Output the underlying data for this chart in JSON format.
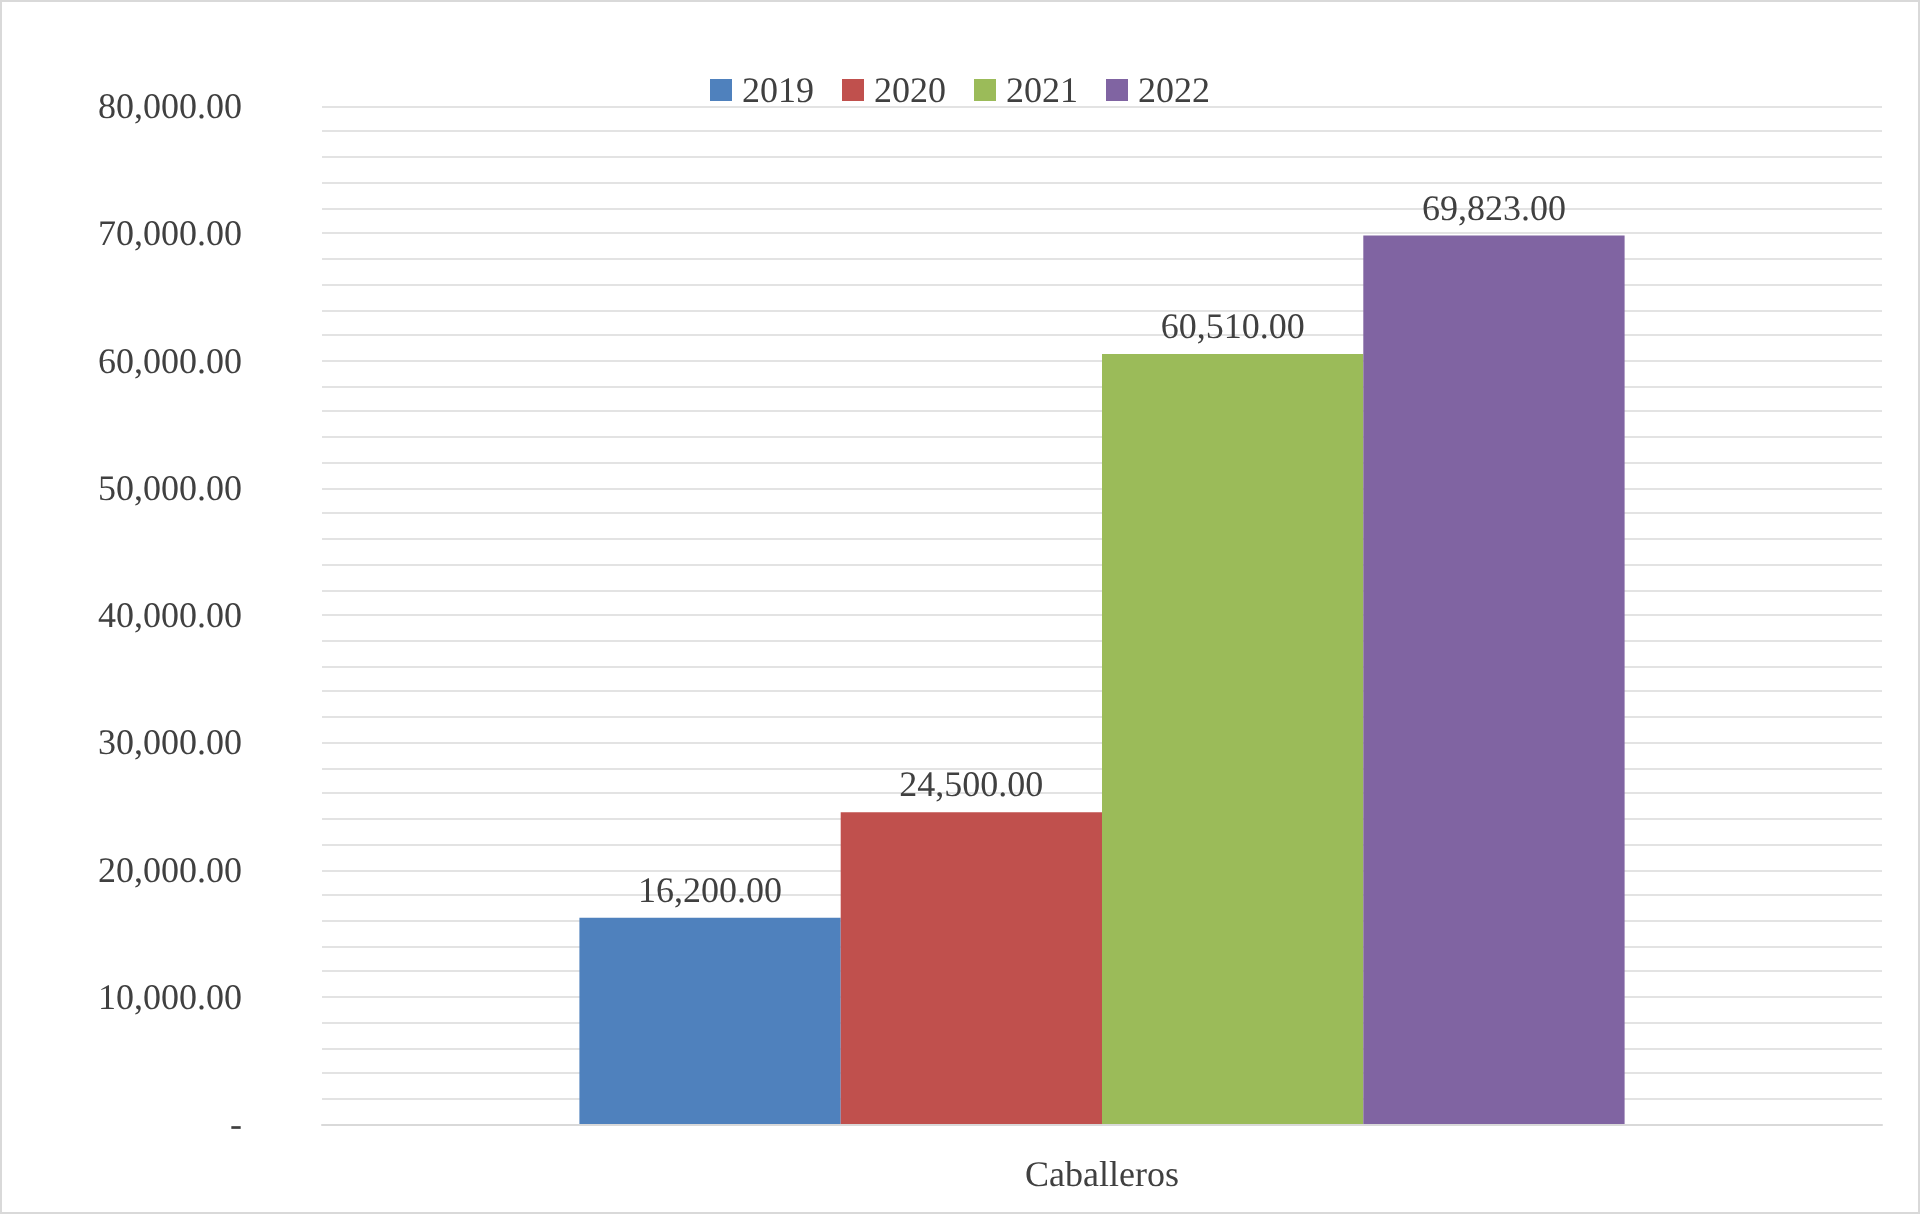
{
  "chart_data": {
    "type": "bar",
    "categories": [
      "Caballeros"
    ],
    "series": [
      {
        "name": "2019",
        "color": "#4f81bd",
        "values": [
          16200
        ],
        "value_labels": [
          "16,200.00"
        ]
      },
      {
        "name": "2020",
        "color": "#c0504d",
        "values": [
          24500
        ],
        "value_labels": [
          "24,500.00"
        ]
      },
      {
        "name": "2021",
        "color": "#9bbb59",
        "values": [
          60510
        ],
        "value_labels": [
          "60,510.00"
        ]
      },
      {
        "name": "2022",
        "color": "#8064a2",
        "values": [
          69823
        ],
        "value_labels": [
          "69,823.00"
        ]
      }
    ],
    "ylim": [
      0,
      80000
    ],
    "yticks": [
      {
        "value": 0,
        "label": "-"
      },
      {
        "value": 2000,
        "label": null
      },
      {
        "value": 4000,
        "label": null
      },
      {
        "value": 6000,
        "label": null
      },
      {
        "value": 8000,
        "label": null
      },
      {
        "value": 10000,
        "label": "10,000.00"
      },
      {
        "value": 12000,
        "label": null
      },
      {
        "value": 14000,
        "label": null
      },
      {
        "value": 16000,
        "label": null
      },
      {
        "value": 18000,
        "label": null
      },
      {
        "value": 20000,
        "label": "20,000.00"
      },
      {
        "value": 22000,
        "label": null
      },
      {
        "value": 24000,
        "label": null
      },
      {
        "value": 26000,
        "label": null
      },
      {
        "value": 28000,
        "label": null
      },
      {
        "value": 30000,
        "label": "30,000.00"
      },
      {
        "value": 32000,
        "label": null
      },
      {
        "value": 34000,
        "label": null
      },
      {
        "value": 36000,
        "label": null
      },
      {
        "value": 38000,
        "label": null
      },
      {
        "value": 40000,
        "label": "40,000.00"
      },
      {
        "value": 42000,
        "label": null
      },
      {
        "value": 44000,
        "label": null
      },
      {
        "value": 46000,
        "label": null
      },
      {
        "value": 48000,
        "label": null
      },
      {
        "value": 50000,
        "label": "50,000.00"
      },
      {
        "value": 52000,
        "label": null
      },
      {
        "value": 54000,
        "label": null
      },
      {
        "value": 56000,
        "label": null
      },
      {
        "value": 58000,
        "label": null
      },
      {
        "value": 60000,
        "label": "60,000.00"
      },
      {
        "value": 62000,
        "label": null
      },
      {
        "value": 64000,
        "label": null
      },
      {
        "value": 66000,
        "label": null
      },
      {
        "value": 68000,
        "label": null
      },
      {
        "value": 70000,
        "label": "70,000.00"
      },
      {
        "value": 72000,
        "label": null
      },
      {
        "value": 74000,
        "label": null
      },
      {
        "value": 76000,
        "label": null
      },
      {
        "value": 78000,
        "label": null
      },
      {
        "value": 80000,
        "label": "80,000.00"
      }
    ],
    "grid": "y",
    "legend": "top"
  }
}
